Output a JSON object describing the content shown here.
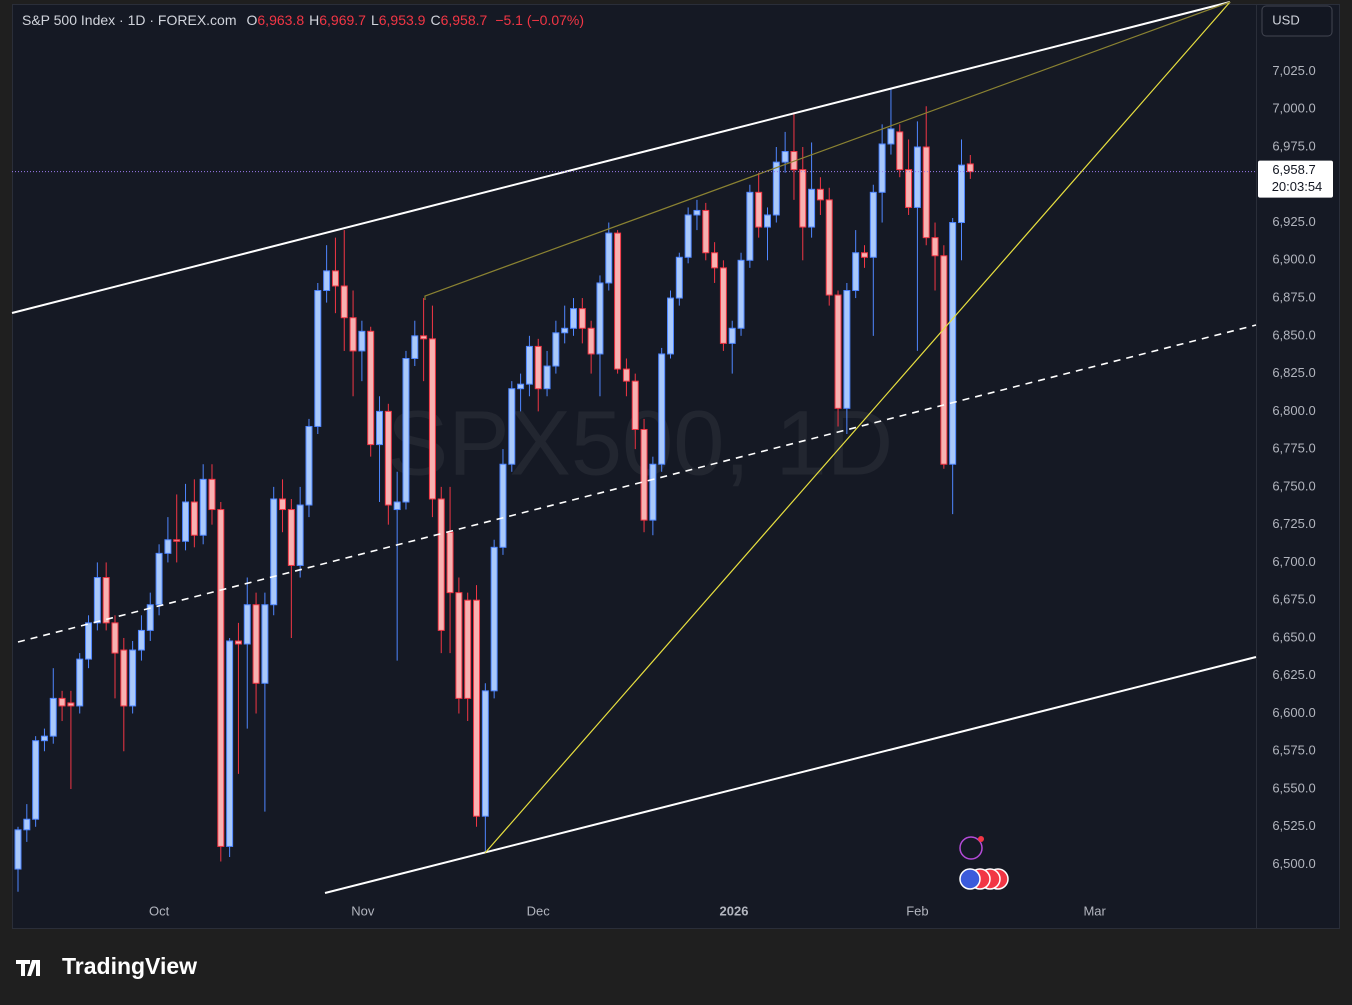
{
  "chart_data": {
    "type": "candlestick",
    "title": "S&P 500 Index · 1D · FOREX.com",
    "ohlc": [
      {
        "key": "O",
        "value": "6,963.8"
      },
      {
        "key": "H",
        "value": "6,969.7"
      },
      {
        "key": "L",
        "value": "6,953.9"
      },
      {
        "key": "C",
        "value": "6,958.7"
      }
    ],
    "change": "−5.1 (−0.07%)",
    "currency": "USD",
    "watermark": "SPX500, 1D",
    "last_price_label": "6,958.7",
    "countdown": "20:03:54",
    "up_color": "#a9c9fb",
    "up_line": "#4f86ff",
    "down_color": "#f8b2b1",
    "down_line": "#f23645",
    "grid": false,
    "xlim": [
      -0.68,
      140.4
    ],
    "xticks": [
      {
        "value": 16.0,
        "label": "Oct"
      },
      {
        "value": 39.1,
        "label": "Nov"
      },
      {
        "value": 59.0,
        "label": "Dec"
      },
      {
        "value": 81.2,
        "label": "2026"
      },
      {
        "value": 102.0,
        "label": "Feb"
      },
      {
        "value": 122.1,
        "label": "Mar"
      }
    ],
    "ylim": [
      6458,
      7069
    ],
    "yticks": [
      {
        "value": 6500,
        "label": "6,500.0"
      },
      {
        "value": 6525,
        "label": "6,525.0"
      },
      {
        "value": 6550,
        "label": "6,550.0"
      },
      {
        "value": 6575,
        "label": "6,575.0"
      },
      {
        "value": 6600,
        "label": "6,600.0"
      },
      {
        "value": 6625,
        "label": "6,625.0"
      },
      {
        "value": 6650,
        "label": "6,650.0"
      },
      {
        "value": 6675,
        "label": "6,675.0"
      },
      {
        "value": 6700,
        "label": "6,700.0"
      },
      {
        "value": 6725,
        "label": "6,725.0"
      },
      {
        "value": 6750,
        "label": "6,750.0"
      },
      {
        "value": 6775,
        "label": "6,775.0"
      },
      {
        "value": 6800,
        "label": "6,800.0"
      },
      {
        "value": 6825,
        "label": "6,825.0"
      },
      {
        "value": 6850,
        "label": "6,850.0"
      },
      {
        "value": 6875,
        "label": "6,875.0"
      },
      {
        "value": 6900,
        "label": "6,900.0"
      },
      {
        "value": 6925,
        "label": "6,925.0"
      },
      {
        "value": 6950,
        "label": "6,950.0"
      },
      {
        "value": 6975,
        "label": "6,975.0"
      },
      {
        "value": 7000,
        "label": "7,000.0"
      },
      {
        "value": 7025,
        "label": "7,025.0"
      }
    ],
    "candles": [
      {
        "o": 6497,
        "h": 6525,
        "l": 6482,
        "c": 6523
      },
      {
        "o": 6523,
        "h": 6540,
        "l": 6515,
        "c": 6530
      },
      {
        "o": 6530,
        "h": 6585,
        "l": 6525,
        "c": 6582
      },
      {
        "o": 6582,
        "h": 6590,
        "l": 6575,
        "c": 6585
      },
      {
        "o": 6585,
        "h": 6630,
        "l": 6580,
        "c": 6610
      },
      {
        "o": 6610,
        "h": 6615,
        "l": 6595,
        "c": 6605
      },
      {
        "o": 6607,
        "h": 6615,
        "l": 6550,
        "c": 6605
      },
      {
        "o": 6605,
        "h": 6640,
        "l": 6600,
        "c": 6636
      },
      {
        "o": 6636,
        "h": 6665,
        "l": 6630,
        "c": 6660
      },
      {
        "o": 6660,
        "h": 6700,
        "l": 6655,
        "c": 6690
      },
      {
        "o": 6690,
        "h": 6700,
        "l": 6655,
        "c": 6660
      },
      {
        "o": 6660,
        "h": 6665,
        "l": 6610,
        "c": 6640
      },
      {
        "o": 6642,
        "h": 6650,
        "l": 6575,
        "c": 6605
      },
      {
        "o": 6605,
        "h": 6648,
        "l": 6600,
        "c": 6642
      },
      {
        "o": 6642,
        "h": 6665,
        "l": 6635,
        "c": 6655
      },
      {
        "o": 6655,
        "h": 6680,
        "l": 6648,
        "c": 6672
      },
      {
        "o": 6672,
        "h": 6712,
        "l": 6665,
        "c": 6706
      },
      {
        "o": 6706,
        "h": 6730,
        "l": 6700,
        "c": 6715
      },
      {
        "o": 6715,
        "h": 6745,
        "l": 6700,
        "c": 6714
      },
      {
        "o": 6714,
        "h": 6752,
        "l": 6708,
        "c": 6740
      },
      {
        "o": 6740,
        "h": 6755,
        "l": 6710,
        "c": 6718
      },
      {
        "o": 6718,
        "h": 6765,
        "l": 6712,
        "c": 6755
      },
      {
        "o": 6755,
        "h": 6765,
        "l": 6725,
        "c": 6735
      },
      {
        "o": 6735,
        "h": 6740,
        "l": 6502,
        "c": 6512
      },
      {
        "o": 6512,
        "h": 6650,
        "l": 6505,
        "c": 6648
      },
      {
        "o": 6648,
        "h": 6660,
        "l": 6560,
        "c": 6646
      },
      {
        "o": 6646,
        "h": 6690,
        "l": 6590,
        "c": 6672
      },
      {
        "o": 6672,
        "h": 6680,
        "l": 6600,
        "c": 6620
      },
      {
        "o": 6620,
        "h": 6680,
        "l": 6535,
        "c": 6672
      },
      {
        "o": 6672,
        "h": 6750,
        "l": 6665,
        "c": 6742
      },
      {
        "o": 6742,
        "h": 6755,
        "l": 6720,
        "c": 6735
      },
      {
        "o": 6735,
        "h": 6742,
        "l": 6650,
        "c": 6698
      },
      {
        "o": 6698,
        "h": 6750,
        "l": 6690,
        "c": 6738
      },
      {
        "o": 6738,
        "h": 6795,
        "l": 6730,
        "c": 6790
      },
      {
        "o": 6790,
        "h": 6885,
        "l": 6785,
        "c": 6880
      },
      {
        "o": 6880,
        "h": 6910,
        "l": 6872,
        "c": 6893
      },
      {
        "o": 6893,
        "h": 6915,
        "l": 6865,
        "c": 6883
      },
      {
        "o": 6883,
        "h": 6920,
        "l": 6840,
        "c": 6862
      },
      {
        "o": 6862,
        "h": 6880,
        "l": 6810,
        "c": 6840
      },
      {
        "o": 6840,
        "h": 6860,
        "l": 6820,
        "c": 6853
      },
      {
        "o": 6853,
        "h": 6856,
        "l": 6770,
        "c": 6778
      },
      {
        "o": 6778,
        "h": 6810,
        "l": 6740,
        "c": 6800
      },
      {
        "o": 6800,
        "h": 6805,
        "l": 6725,
        "c": 6738
      },
      {
        "o": 6735,
        "h": 6760,
        "l": 6635,
        "c": 6740
      },
      {
        "o": 6740,
        "h": 6840,
        "l": 6735,
        "c": 6835
      },
      {
        "o": 6835,
        "h": 6860,
        "l": 6830,
        "c": 6850
      },
      {
        "o": 6850,
        "h": 6875,
        "l": 6820,
        "c": 6848
      },
      {
        "o": 6848,
        "h": 6870,
        "l": 6730,
        "c": 6742
      },
      {
        "o": 6742,
        "h": 6750,
        "l": 6640,
        "c": 6655
      },
      {
        "o": 6720,
        "h": 6750,
        "l": 6640,
        "c": 6680
      },
      {
        "o": 6680,
        "h": 6690,
        "l": 6600,
        "c": 6610
      },
      {
        "o": 6675,
        "h": 6680,
        "l": 6595,
        "c": 6610
      },
      {
        "o": 6675,
        "h": 6685,
        "l": 6525,
        "c": 6532
      },
      {
        "o": 6532,
        "h": 6620,
        "l": 6508,
        "c": 6615
      },
      {
        "o": 6615,
        "h": 6715,
        "l": 6610,
        "c": 6710
      },
      {
        "o": 6710,
        "h": 6775,
        "l": 6705,
        "c": 6765
      },
      {
        "o": 6765,
        "h": 6820,
        "l": 6760,
        "c": 6815
      },
      {
        "o": 6815,
        "h": 6825,
        "l": 6800,
        "c": 6818
      },
      {
        "o": 6818,
        "h": 6850,
        "l": 6810,
        "c": 6843
      },
      {
        "o": 6843,
        "h": 6848,
        "l": 6800,
        "c": 6815
      },
      {
        "o": 6815,
        "h": 6840,
        "l": 6810,
        "c": 6830
      },
      {
        "o": 6830,
        "h": 6860,
        "l": 6825,
        "c": 6852
      },
      {
        "o": 6852,
        "h": 6870,
        "l": 6845,
        "c": 6855
      },
      {
        "o": 6855,
        "h": 6875,
        "l": 6850,
        "c": 6868
      },
      {
        "o": 6868,
        "h": 6875,
        "l": 6845,
        "c": 6855
      },
      {
        "o": 6855,
        "h": 6860,
        "l": 6825,
        "c": 6838
      },
      {
        "o": 6838,
        "h": 6890,
        "l": 6810,
        "c": 6885
      },
      {
        "o": 6885,
        "h": 6925,
        "l": 6880,
        "c": 6918
      },
      {
        "o": 6918,
        "h": 6920,
        "l": 6825,
        "c": 6828
      },
      {
        "o": 6828,
        "h": 6835,
        "l": 6810,
        "c": 6820
      },
      {
        "o": 6820,
        "h": 6825,
        "l": 6775,
        "c": 6788
      },
      {
        "o": 6788,
        "h": 6795,
        "l": 6720,
        "c": 6728
      },
      {
        "o": 6728,
        "h": 6770,
        "l": 6718,
        "c": 6765
      },
      {
        "o": 6765,
        "h": 6842,
        "l": 6760,
        "c": 6838
      },
      {
        "o": 6838,
        "h": 6880,
        "l": 6835,
        "c": 6875
      },
      {
        "o": 6875,
        "h": 6905,
        "l": 6870,
        "c": 6902
      },
      {
        "o": 6902,
        "h": 6935,
        "l": 6898,
        "c": 6930
      },
      {
        "o": 6930,
        "h": 6940,
        "l": 6920,
        "c": 6933
      },
      {
        "o": 6933,
        "h": 6938,
        "l": 6900,
        "c": 6905
      },
      {
        "o": 6905,
        "h": 6912,
        "l": 6885,
        "c": 6895
      },
      {
        "o": 6895,
        "h": 6900,
        "l": 6840,
        "c": 6845
      },
      {
        "o": 6845,
        "h": 6860,
        "l": 6825,
        "c": 6855
      },
      {
        "o": 6855,
        "h": 6905,
        "l": 6850,
        "c": 6900
      },
      {
        "o": 6900,
        "h": 6950,
        "l": 6895,
        "c": 6945
      },
      {
        "o": 6945,
        "h": 6958,
        "l": 6915,
        "c": 6922
      },
      {
        "o": 6922,
        "h": 6935,
        "l": 6900,
        "c": 6930
      },
      {
        "o": 6930,
        "h": 6975,
        "l": 6925,
        "c": 6965
      },
      {
        "o": 6965,
        "h": 6985,
        "l": 6958,
        "c": 6972
      },
      {
        "o": 6972,
        "h": 6998,
        "l": 6940,
        "c": 6960
      },
      {
        "o": 6960,
        "h": 6975,
        "l": 6900,
        "c": 6922
      },
      {
        "o": 6922,
        "h": 6978,
        "l": 6915,
        "c": 6947
      },
      {
        "o": 6947,
        "h": 6955,
        "l": 6930,
        "c": 6940
      },
      {
        "o": 6940,
        "h": 6948,
        "l": 6870,
        "c": 6877
      },
      {
        "o": 6877,
        "h": 6880,
        "l": 6790,
        "c": 6802
      },
      {
        "o": 6802,
        "h": 6885,
        "l": 6785,
        "c": 6880
      },
      {
        "o": 6880,
        "h": 6920,
        "l": 6875,
        "c": 6905
      },
      {
        "o": 6905,
        "h": 6910,
        "l": 6895,
        "c": 6902
      },
      {
        "o": 6902,
        "h": 6950,
        "l": 6850,
        "c": 6945
      },
      {
        "o": 6945,
        "h": 6990,
        "l": 6925,
        "c": 6977
      },
      {
        "o": 6977,
        "h": 7013,
        "l": 6970,
        "c": 6987
      },
      {
        "o": 6985,
        "h": 6990,
        "l": 6955,
        "c": 6960
      },
      {
        "o": 6960,
        "h": 6980,
        "l": 6930,
        "c": 6935
      },
      {
        "o": 6935,
        "h": 6992,
        "l": 6840,
        "c": 6975
      },
      {
        "o": 6975,
        "h": 7002,
        "l": 6910,
        "c": 6915
      },
      {
        "o": 6915,
        "h": 6925,
        "l": 6880,
        "c": 6903
      },
      {
        "o": 6903,
        "h": 6910,
        "l": 6762,
        "c": 6765
      },
      {
        "o": 6765,
        "h": 6928,
        "l": 6732,
        "c": 6925
      },
      {
        "o": 6925,
        "h": 6980,
        "l": 6900,
        "c": 6963
      },
      {
        "o": 6963.8,
        "h": 6969.7,
        "l": 6953.9,
        "c": 6958.7
      }
    ]
  },
  "branding": "TradingView"
}
